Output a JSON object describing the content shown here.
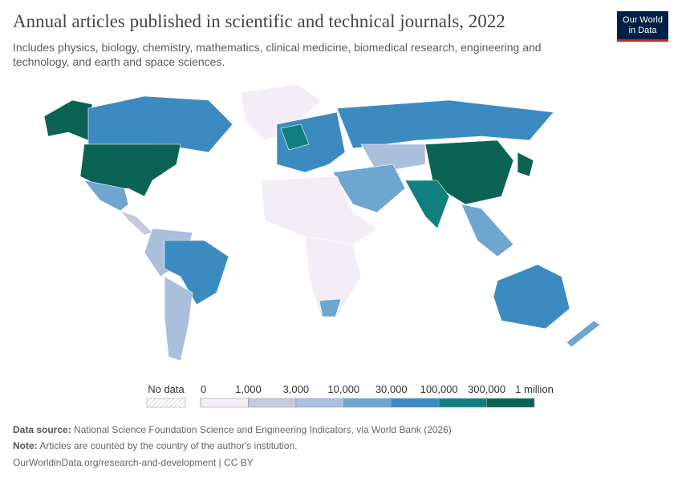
{
  "header": {
    "title": "Annual articles published in scientific and technical journals, 2022",
    "subtitle": "Includes physics, biology, chemistry, mathematics, clinical medicine, biomedical research, engineering and technology, and earth and space sciences.",
    "logo": [
      "Our World",
      "in Data"
    ]
  },
  "legend": {
    "no_data": "No data",
    "ticks": [
      0,
      {
        "value": 1000,
        "label": "1,000"
      },
      {
        "value": 3000,
        "label": "3,000"
      },
      {
        "value": 10000,
        "label": "10,000"
      },
      {
        "value": 30000,
        "label": "30,000"
      },
      {
        "value": 100000,
        "label": "100,000"
      },
      {
        "value": 300000,
        "label": "300,000"
      },
      {
        "value": 1000000,
        "label": "1 million"
      }
    ],
    "colors": [
      "#f3eef5",
      "#c6c9e0",
      "#a9bfdc",
      "#6ea6d0",
      "#3b8bc0",
      "#10807f",
      "#0a6353"
    ]
  },
  "footer": {
    "source_label": "Data source:",
    "source": "National Science Foundation Science and Engineering Indicators, via World Bank (2026)",
    "note_label": "Note:",
    "note": "Articles are counted by the country of the author's institution.",
    "link": "OurWorldinData.org/research-and-development | CC BY"
  }
}
